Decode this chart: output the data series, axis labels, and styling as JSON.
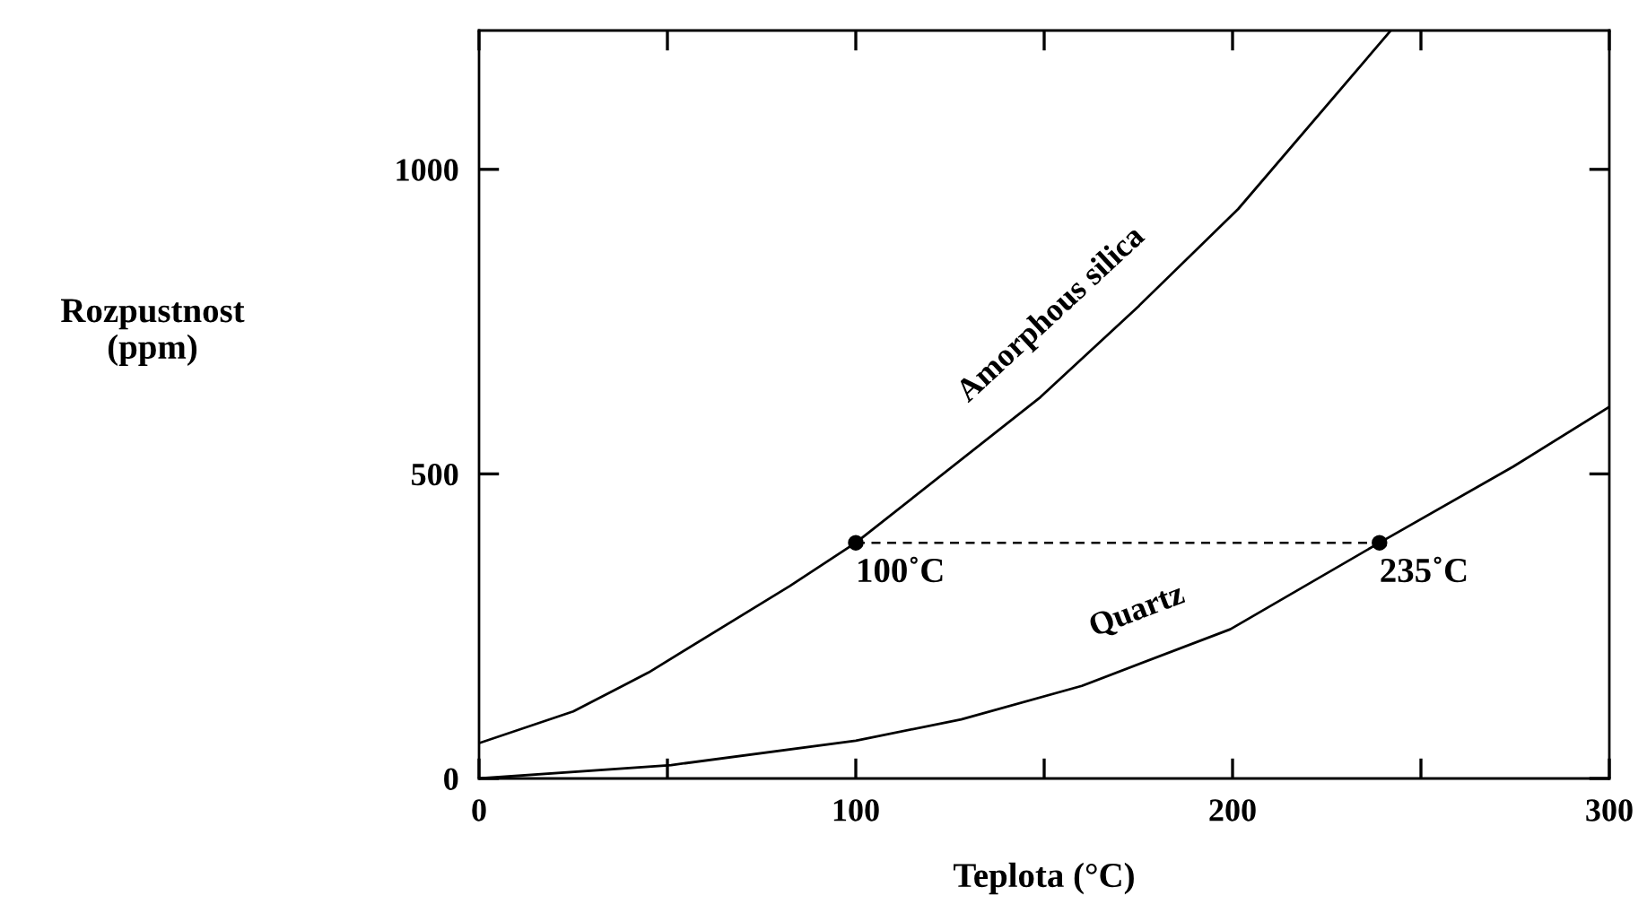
{
  "chart_data": {
    "type": "line",
    "xlabel": "Teplota (°C)",
    "ylabel": "Rozpustnost\n(ppm)",
    "xlim": [
      0,
      300
    ],
    "xticks": [
      0,
      {
        "value": 50,
        "label": null
      },
      100,
      {
        "value": 150,
        "label": null
      },
      200,
      {
        "value": 250,
        "label": null
      },
      300
    ],
    "ylim": [
      0,
      1228
    ],
    "yticks": [
      0,
      500,
      1000
    ],
    "grid": false,
    "legend": false,
    "marker": "none",
    "series": [
      {
        "name": "Amorphous silica",
        "color": "#000000",
        "x": [
          0,
          25,
          45,
          82.5,
          100,
          149,
          175,
          201.5,
          242
        ],
        "values": [
          58,
          110,
          174,
          316,
          387,
          626,
          775,
          935,
          1228
        ]
      },
      {
        "name": "Quartz",
        "color": "#000000",
        "x": [
          0,
          51,
          100,
          128,
          160,
          199.4,
          239,
          274.5,
          300
        ],
        "values": [
          0,
          22,
          62,
          97,
          152,
          245,
          387,
          512,
          610
        ]
      },
      {
        "type": "line",
        "line_style": "dashed",
        "color": "#000000",
        "x": [
          100,
          239
        ],
        "values": [
          387,
          387
        ]
      },
      {
        "type": "scatter",
        "marker": "circle",
        "color": "#000000",
        "x": [
          100,
          239
        ],
        "values": [
          387,
          387
        ]
      }
    ],
    "annotations": [
      {
        "text": "100˚C",
        "x": 100,
        "y": 387
      },
      {
        "text": "235˚C",
        "x": 239,
        "y": 387
      }
    ]
  }
}
